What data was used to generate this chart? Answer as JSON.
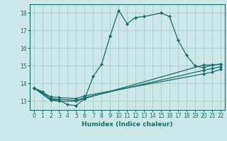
{
  "title": "",
  "xlabel": "Humidex (Indice chaleur)",
  "ylabel": "",
  "bg_color": "#cce8e8",
  "grid_color": "#b0d4d4",
  "line_color": "#1a6b6b",
  "xlim": [
    -0.5,
    22.5
  ],
  "ylim": [
    12.5,
    18.5
  ],
  "xticks": [
    0,
    1,
    2,
    3,
    4,
    5,
    6,
    7,
    8,
    9,
    10,
    11,
    12,
    13,
    14,
    15,
    16,
    17,
    18,
    19,
    20,
    21,
    22
  ],
  "yticks": [
    13,
    14,
    15,
    16,
    17,
    18
  ],
  "lines": [
    {
      "x": [
        0,
        1,
        2,
        3,
        4,
        5,
        6,
        7,
        8,
        9,
        10,
        11,
        12,
        13,
        15,
        16,
        17,
        18,
        19,
        20,
        21,
        22
      ],
      "y": [
        13.75,
        13.55,
        13.1,
        13.05,
        12.8,
        12.75,
        13.15,
        14.4,
        15.1,
        16.7,
        18.15,
        17.4,
        17.75,
        17.8,
        18.0,
        17.8,
        16.45,
        15.6,
        15.0,
        14.9,
        15.05,
        15.1
      ]
    },
    {
      "x": [
        0,
        2,
        3,
        5,
        6,
        20,
        21,
        22
      ],
      "y": [
        13.75,
        13.05,
        13.0,
        13.0,
        13.15,
        15.05,
        15.05,
        15.1
      ]
    },
    {
      "x": [
        0,
        2,
        3,
        5,
        6,
        20,
        21,
        22
      ],
      "y": [
        13.75,
        13.15,
        13.1,
        13.05,
        13.2,
        14.75,
        14.85,
        14.95
      ]
    },
    {
      "x": [
        0,
        2,
        3,
        5,
        6,
        20,
        21,
        22
      ],
      "y": [
        13.75,
        13.25,
        13.2,
        13.15,
        13.3,
        14.55,
        14.65,
        14.8
      ]
    }
  ]
}
